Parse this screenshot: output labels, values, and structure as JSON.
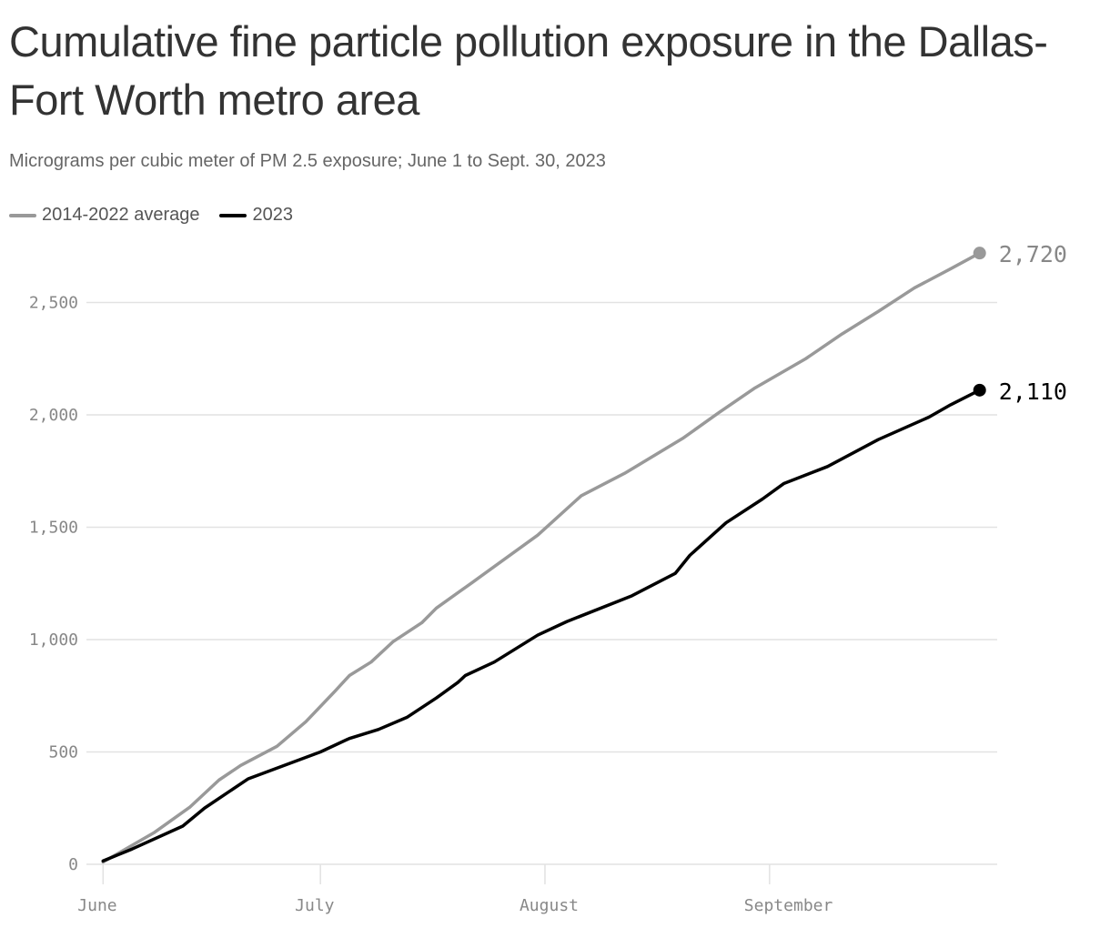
{
  "title": "Cumulative fine particle pollution exposure in the Dallas-Fort Worth metro area",
  "subtitle": "Micrograms per cubic meter of PM 2.5 exposure; June 1 to Sept. 30, 2023",
  "chart_data": {
    "type": "line",
    "title": "Cumulative fine particle pollution exposure in the Dallas-Fort Worth metro area",
    "subtitle": "Micrograms per cubic meter of PM 2.5 exposure; June 1 to Sept. 30, 2023",
    "xlim": [
      "2023-06-01",
      "2023-09-30"
    ],
    "ylim": [
      0,
      2720
    ],
    "grid": true,
    "legend_position": "top-left",
    "y_ticks": [
      0,
      500,
      1000,
      1500,
      2000,
      2500
    ],
    "y_tick_labels": [
      "0",
      "500",
      "1,000",
      "1,500",
      "2,000",
      "2,500"
    ],
    "x_ticks": [
      "2023-06-01",
      "2023-07-01",
      "2023-08-01",
      "2023-09-01"
    ],
    "x_tick_labels": [
      "June",
      "July",
      "August",
      "September"
    ],
    "series": [
      {
        "name": "2014-2022 average",
        "color": "#999999",
        "end_label": "2,720",
        "x": [
          "2023-06-01",
          "2023-06-08",
          "2023-06-13",
          "2023-06-17",
          "2023-06-20",
          "2023-06-25",
          "2023-06-29",
          "2023-07-03",
          "2023-07-05",
          "2023-07-08",
          "2023-07-11",
          "2023-07-15",
          "2023-07-17",
          "2023-07-22",
          "2023-07-31",
          "2023-08-06",
          "2023-08-12",
          "2023-08-20",
          "2023-08-25",
          "2023-08-30",
          "2023-09-06",
          "2023-09-11",
          "2023-09-16",
          "2023-09-21",
          "2023-09-26",
          "2023-09-30"
        ],
        "y": [
          10,
          140,
          255,
          375,
          440,
          525,
          635,
          770,
          840,
          900,
          990,
          1075,
          1140,
          1255,
          1465,
          1640,
          1740,
          1895,
          2010,
          2120,
          2250,
          2360,
          2460,
          2565,
          2650,
          2720
        ]
      },
      {
        "name": "2023",
        "color": "#000000",
        "end_label": "2,110",
        "x": [
          "2023-06-01",
          "2023-06-05",
          "2023-06-12",
          "2023-06-15",
          "2023-06-21",
          "2023-07-01",
          "2023-07-05",
          "2023-07-09",
          "2023-07-13",
          "2023-07-17",
          "2023-07-20",
          "2023-07-21",
          "2023-07-25",
          "2023-07-31",
          "2023-08-04",
          "2023-08-13",
          "2023-08-19",
          "2023-08-21",
          "2023-08-26",
          "2023-08-31",
          "2023-09-03",
          "2023-09-09",
          "2023-09-16",
          "2023-09-23",
          "2023-09-26",
          "2023-09-30"
        ],
        "y": [
          15,
          68,
          170,
          250,
          380,
          500,
          560,
          600,
          655,
          740,
          810,
          840,
          900,
          1020,
          1080,
          1195,
          1295,
          1375,
          1520,
          1625,
          1695,
          1770,
          1890,
          1990,
          2045,
          2110
        ]
      }
    ]
  }
}
